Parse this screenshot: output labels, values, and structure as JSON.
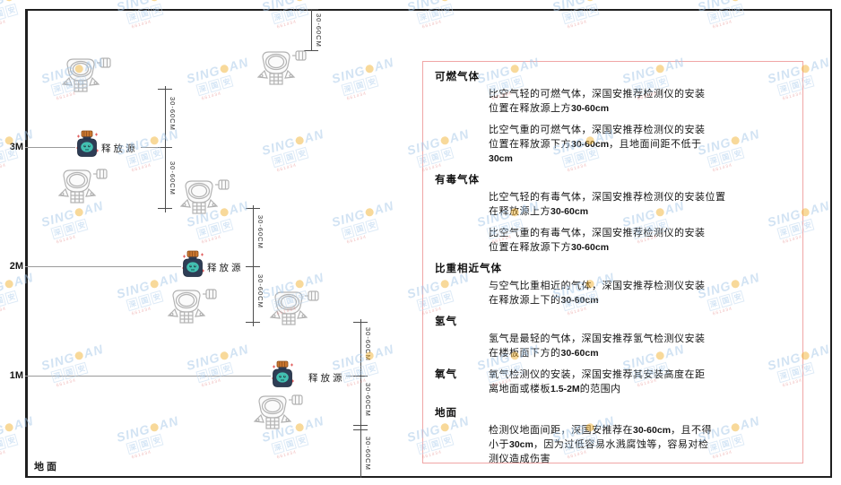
{
  "diagram": {
    "ground_label": "地面",
    "height_labels": [
      "3M",
      "2M",
      "1M"
    ],
    "release_source_label": "释放源",
    "dim_label": "30-60CM"
  },
  "panel": {
    "sections": [
      {
        "heading": "可燃气体",
        "inline": false,
        "paragraphs": [
          [
            "比空气轻的可燃气体，深国安推荐检测仪的安装",
            "位置在释放源上方30-60cm"
          ],
          [
            "比空气重的可燃气体，深国安推荐检测仪的安装",
            "位置在释放源下方30-60cm，且地面间距不低于",
            "30cm"
          ]
        ]
      },
      {
        "heading": "有毒气体",
        "inline": false,
        "paragraphs": [
          [
            "比空气轻的有毒气体，深国安推荐检测仪的安装位置",
            "在释放源上方30-60cm"
          ],
          [
            "比空气重的有毒气体，深国安推荐检测仪的安装",
            "位置在释放源下方30-60cm"
          ]
        ]
      },
      {
        "heading": "比重相近气体",
        "inline": false,
        "paragraphs": [
          [
            "与空气比重相近的气体，深国安推荐检测仪安装",
            "在释放源上下的30-60cm"
          ]
        ]
      },
      {
        "heading": "氢气",
        "inline": false,
        "paragraphs": [
          [
            "氢气是最轻的气体，深国安推荐氢气检测仪安装",
            "在楼板面下方的30-60cm"
          ]
        ]
      },
      {
        "heading": "氧气",
        "inline": true,
        "paragraphs": [
          [
            "氧气检测仪的安装，深国安推荐其安装高度在距",
            "离地面或楼板1.5-2M的范围内"
          ]
        ]
      },
      {
        "heading": "地面",
        "inline": false,
        "paragraphs": [
          [
            "检测仪地面间距，深国安推荐在30-60cm，且不得",
            "小于30cm，因为过低容易水溅腐蚀等，容易对检",
            "测仪造成伤害"
          ]
        ]
      }
    ]
  },
  "watermark": {
    "brand_left": "SING",
    "brand_right": "AN",
    "line2": "深 国 安",
    "line3": "661434"
  },
  "colors": {
    "panel_border": "#f0a6a6",
    "cap_orange": "#c9762f",
    "source_navy": "#2e3d55",
    "source_teal": "#43c0b2",
    "watermark_blue": "#a6c8e9",
    "watermark_yellow": "#f2b437",
    "watermark_red": "#e27d7d"
  }
}
